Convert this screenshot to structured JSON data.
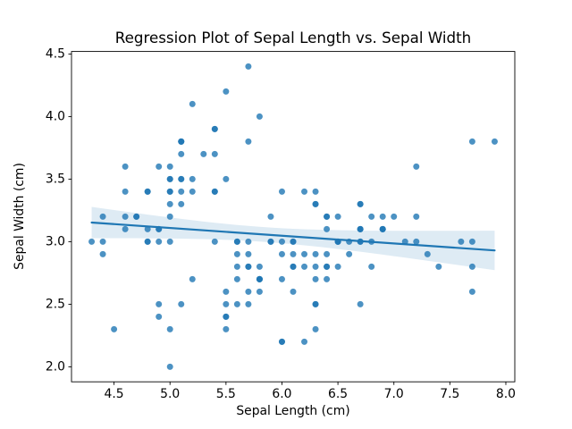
{
  "chart_data": {
    "type": "scatter",
    "title": "Regression Plot of Sepal Length vs. Sepal Width",
    "xlabel": "Sepal Length (cm)",
    "ylabel": "Sepal Width (cm)",
    "xlim": [
      4.12,
      8.08
    ],
    "ylim": [
      1.88,
      4.52
    ],
    "xticks": [
      4.5,
      5.0,
      5.5,
      6.0,
      6.5,
      7.0,
      7.5,
      8.0
    ],
    "yticks": [
      2.0,
      2.5,
      3.0,
      3.5,
      4.0,
      4.5
    ],
    "grid": false,
    "legend": null,
    "colors": {
      "point": "#1f77b4",
      "point_alpha": 0.8,
      "line": "#1f77b4",
      "band": "#1f77b4",
      "band_alpha": 0.15,
      "spine": "#000000",
      "text": "#000000"
    },
    "point_radius": 3.5,
    "line_width": 2.2,
    "regression": {
      "slope": -0.0619,
      "intercept": 3.419,
      "x_start": 4.3,
      "x_end": 7.9
    },
    "ci_band": {
      "level": 95,
      "k": 0.72,
      "n": 150,
      "x_mean": 5.8433,
      "sxx": 102.17
    },
    "points": [
      [
        5.1,
        3.5
      ],
      [
        4.9,
        3.0
      ],
      [
        4.7,
        3.2
      ],
      [
        4.6,
        3.1
      ],
      [
        5.0,
        3.6
      ],
      [
        5.4,
        3.9
      ],
      [
        4.6,
        3.4
      ],
      [
        5.0,
        3.4
      ],
      [
        4.4,
        2.9
      ],
      [
        4.9,
        3.1
      ],
      [
        5.4,
        3.7
      ],
      [
        4.8,
        3.4
      ],
      [
        4.8,
        3.0
      ],
      [
        4.3,
        3.0
      ],
      [
        5.8,
        4.0
      ],
      [
        5.7,
        4.4
      ],
      [
        5.4,
        3.9
      ],
      [
        5.1,
        3.5
      ],
      [
        5.7,
        3.8
      ],
      [
        5.1,
        3.8
      ],
      [
        5.4,
        3.4
      ],
      [
        5.1,
        3.7
      ],
      [
        4.6,
        3.6
      ],
      [
        5.1,
        3.3
      ],
      [
        4.8,
        3.4
      ],
      [
        5.0,
        3.0
      ],
      [
        5.0,
        3.4
      ],
      [
        5.2,
        3.5
      ],
      [
        5.2,
        3.4
      ],
      [
        4.7,
        3.2
      ],
      [
        4.8,
        3.1
      ],
      [
        5.4,
        3.4
      ],
      [
        5.2,
        4.1
      ],
      [
        5.5,
        4.2
      ],
      [
        4.9,
        3.1
      ],
      [
        5.0,
        3.2
      ],
      [
        5.5,
        3.5
      ],
      [
        4.9,
        3.6
      ],
      [
        4.4,
        3.0
      ],
      [
        5.1,
        3.4
      ],
      [
        5.0,
        3.5
      ],
      [
        4.5,
        2.3
      ],
      [
        4.4,
        3.2
      ],
      [
        5.0,
        3.5
      ],
      [
        5.1,
        3.8
      ],
      [
        4.8,
        3.0
      ],
      [
        5.1,
        3.8
      ],
      [
        4.6,
        3.2
      ],
      [
        5.3,
        3.7
      ],
      [
        5.0,
        3.3
      ],
      [
        7.0,
        3.2
      ],
      [
        6.4,
        3.2
      ],
      [
        6.9,
        3.1
      ],
      [
        5.5,
        2.3
      ],
      [
        6.5,
        2.8
      ],
      [
        5.7,
        2.8
      ],
      [
        6.3,
        3.3
      ],
      [
        4.9,
        2.4
      ],
      [
        6.6,
        2.9
      ],
      [
        5.2,
        2.7
      ],
      [
        5.0,
        2.0
      ],
      [
        5.9,
        3.0
      ],
      [
        6.0,
        2.2
      ],
      [
        6.1,
        2.9
      ],
      [
        5.6,
        2.9
      ],
      [
        6.7,
        3.1
      ],
      [
        5.6,
        3.0
      ],
      [
        5.8,
        2.7
      ],
      [
        6.2,
        2.2
      ],
      [
        5.6,
        2.5
      ],
      [
        5.9,
        3.2
      ],
      [
        6.1,
        2.8
      ],
      [
        6.3,
        2.5
      ],
      [
        6.1,
        2.8
      ],
      [
        6.4,
        2.9
      ],
      [
        6.6,
        3.0
      ],
      [
        6.8,
        2.8
      ],
      [
        6.7,
        3.0
      ],
      [
        6.0,
        2.9
      ],
      [
        5.7,
        2.6
      ],
      [
        5.5,
        2.4
      ],
      [
        5.5,
        2.4
      ],
      [
        5.8,
        2.7
      ],
      [
        6.0,
        2.7
      ],
      [
        5.4,
        3.0
      ],
      [
        6.0,
        3.4
      ],
      [
        6.7,
        3.1
      ],
      [
        6.3,
        2.3
      ],
      [
        5.6,
        3.0
      ],
      [
        5.5,
        2.5
      ],
      [
        5.5,
        2.6
      ],
      [
        6.1,
        3.0
      ],
      [
        5.8,
        2.6
      ],
      [
        5.0,
        2.3
      ],
      [
        5.6,
        2.7
      ],
      [
        5.7,
        3.0
      ],
      [
        5.7,
        2.9
      ],
      [
        6.2,
        2.9
      ],
      [
        5.1,
        2.5
      ],
      [
        5.7,
        2.8
      ],
      [
        6.3,
        3.3
      ],
      [
        5.8,
        2.7
      ],
      [
        7.1,
        3.0
      ],
      [
        6.3,
        2.9
      ],
      [
        6.5,
        3.0
      ],
      [
        7.6,
        3.0
      ],
      [
        4.9,
        2.5
      ],
      [
        7.3,
        2.9
      ],
      [
        6.7,
        2.5
      ],
      [
        7.2,
        3.6
      ],
      [
        6.5,
        3.2
      ],
      [
        6.4,
        2.7
      ],
      [
        6.8,
        3.0
      ],
      [
        5.7,
        2.5
      ],
      [
        5.8,
        2.8
      ],
      [
        6.4,
        3.2
      ],
      [
        6.5,
        3.0
      ],
      [
        7.7,
        3.8
      ],
      [
        7.7,
        2.6
      ],
      [
        6.0,
        2.2
      ],
      [
        6.9,
        3.2
      ],
      [
        5.6,
        2.8
      ],
      [
        7.7,
        2.8
      ],
      [
        6.3,
        2.7
      ],
      [
        6.7,
        3.3
      ],
      [
        7.2,
        3.2
      ],
      [
        6.2,
        2.8
      ],
      [
        6.1,
        3.0
      ],
      [
        6.4,
        2.8
      ],
      [
        7.2,
        3.0
      ],
      [
        7.4,
        2.8
      ],
      [
        7.9,
        3.8
      ],
      [
        6.4,
        2.8
      ],
      [
        6.3,
        2.8
      ],
      [
        6.1,
        2.6
      ],
      [
        7.7,
        3.0
      ],
      [
        6.3,
        3.4
      ],
      [
        6.4,
        3.1
      ],
      [
        6.0,
        3.0
      ],
      [
        6.9,
        3.1
      ],
      [
        6.7,
        3.1
      ],
      [
        6.9,
        3.1
      ],
      [
        5.8,
        2.7
      ],
      [
        6.8,
        3.2
      ],
      [
        6.7,
        3.3
      ],
      [
        6.7,
        3.0
      ],
      [
        6.3,
        2.5
      ],
      [
        6.5,
        3.0
      ],
      [
        6.2,
        3.4
      ],
      [
        5.9,
        3.0
      ]
    ]
  }
}
